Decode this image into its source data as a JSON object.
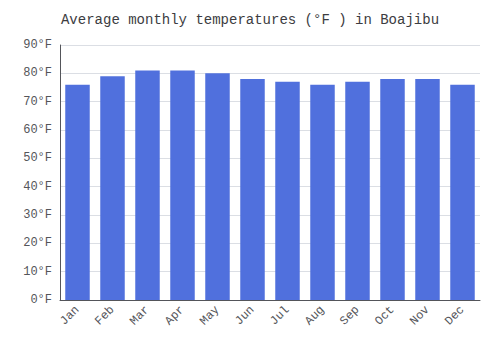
{
  "chart_data": {
    "type": "bar",
    "title": "Average monthly temperatures (°F ) in Boajibu",
    "categories": [
      "Jan",
      "Feb",
      "Mar",
      "Apr",
      "May",
      "Jun",
      "Jul",
      "Aug",
      "Sep",
      "Oct",
      "Nov",
      "Dec"
    ],
    "values": [
      76,
      79,
      81,
      81,
      80,
      78,
      77,
      76,
      77,
      78,
      78,
      76
    ],
    "ylim": [
      0,
      90
    ],
    "yticks": [
      {
        "value": 0,
        "label": "0°F"
      },
      {
        "value": 10,
        "label": "10°F"
      },
      {
        "value": 20,
        "label": "20°F"
      },
      {
        "value": 30,
        "label": "30°F"
      },
      {
        "value": 40,
        "label": "40°F"
      },
      {
        "value": 50,
        "label": "50°F"
      },
      {
        "value": 60,
        "label": "60°F"
      },
      {
        "value": 70,
        "label": "70°F"
      },
      {
        "value": 80,
        "label": "80°F"
      },
      {
        "value": 90,
        "label": "90°F"
      }
    ],
    "grid": true
  }
}
